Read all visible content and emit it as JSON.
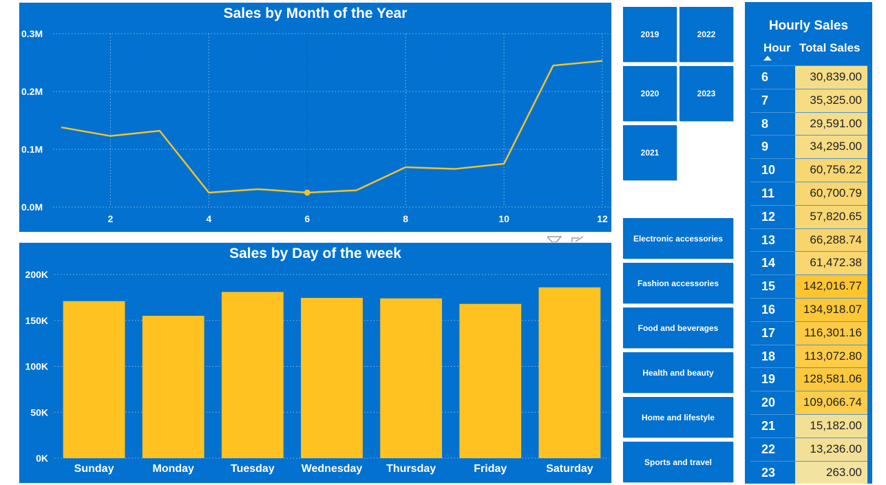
{
  "month_chart": {
    "title": "Sales by Month of the Year",
    "type": "line",
    "x": [
      1,
      2,
      3,
      4,
      5,
      6,
      7,
      8,
      9,
      10,
      11,
      12
    ],
    "values": [
      138000,
      123000,
      132000,
      25000,
      31000,
      25000,
      29000,
      69000,
      66000,
      75000,
      245000,
      253000
    ],
    "x_ticks": [
      "2",
      "4",
      "6",
      "8",
      "10",
      "12"
    ],
    "x_tick_values": [
      2,
      4,
      6,
      8,
      10,
      12
    ],
    "y_ticks": [
      "0.0M",
      "0.1M",
      "0.2M",
      "0.3M"
    ],
    "y_tick_values": [
      0,
      100000,
      200000,
      300000
    ],
    "ylim": [
      0,
      300000
    ],
    "xlim": [
      1,
      12
    ],
    "highlight_x": 6,
    "line_color": "#f2c12e"
  },
  "day_chart": {
    "title": "Sales by Day of the week",
    "type": "bar",
    "categories": [
      "Sunday",
      "Monday",
      "Tuesday",
      "Wednesday",
      "Thursday",
      "Friday",
      "Saturday"
    ],
    "values": [
      171000,
      155000,
      181000,
      174500,
      174000,
      168000,
      186000
    ],
    "y_ticks": [
      "0K",
      "50K",
      "100K",
      "150K",
      "200K"
    ],
    "y_tick_values": [
      0,
      50000,
      100000,
      150000,
      200000
    ],
    "ylim": [
      0,
      200000
    ],
    "bar_color": "#ffc220"
  },
  "year_slicer": [
    "2019",
    "2022",
    "2020",
    "2023",
    "2021"
  ],
  "category_slicer": [
    "Electronic accessories",
    "Fashion accessories",
    "Food and beverages",
    "Health and beauty",
    "Home and lifestyle",
    "Sports and travel"
  ],
  "hourly": {
    "title": "Hourly Sales",
    "col_hour": "Hour",
    "col_total": "Total Sales",
    "rows": [
      {
        "hour": "6",
        "total": "30,839.00",
        "value": 30839.0
      },
      {
        "hour": "7",
        "total": "35,325.00",
        "value": 35325.0
      },
      {
        "hour": "8",
        "total": "29,591.00",
        "value": 29591.0
      },
      {
        "hour": "9",
        "total": "34,295.00",
        "value": 34295.0
      },
      {
        "hour": "10",
        "total": "60,756.22",
        "value": 60756.22
      },
      {
        "hour": "11",
        "total": "60,700.79",
        "value": 60700.79
      },
      {
        "hour": "12",
        "total": "57,820.65",
        "value": 57820.65
      },
      {
        "hour": "13",
        "total": "66,288.74",
        "value": 66288.74
      },
      {
        "hour": "14",
        "total": "61,472.38",
        "value": 61472.38
      },
      {
        "hour": "15",
        "total": "142,016.77",
        "value": 142016.77
      },
      {
        "hour": "16",
        "total": "134,918.07",
        "value": 134918.07
      },
      {
        "hour": "17",
        "total": "116,301.16",
        "value": 116301.16
      },
      {
        "hour": "18",
        "total": "113,072.80",
        "value": 113072.8
      },
      {
        "hour": "19",
        "total": "128,581.06",
        "value": 128581.06
      },
      {
        "hour": "20",
        "total": "109,066.74",
        "value": 109066.74
      },
      {
        "hour": "21",
        "total": "15,182.00",
        "value": 15182.0
      },
      {
        "hour": "22",
        "total": "13,236.00",
        "value": 13236.0
      },
      {
        "hour": "23",
        "total": "263.00",
        "value": 263.0
      }
    ],
    "scale_low_color": "#f2e3a0",
    "scale_high_color": "#ffc531"
  },
  "icons": [
    "filter-icon",
    "focus-mode-icon"
  ]
}
